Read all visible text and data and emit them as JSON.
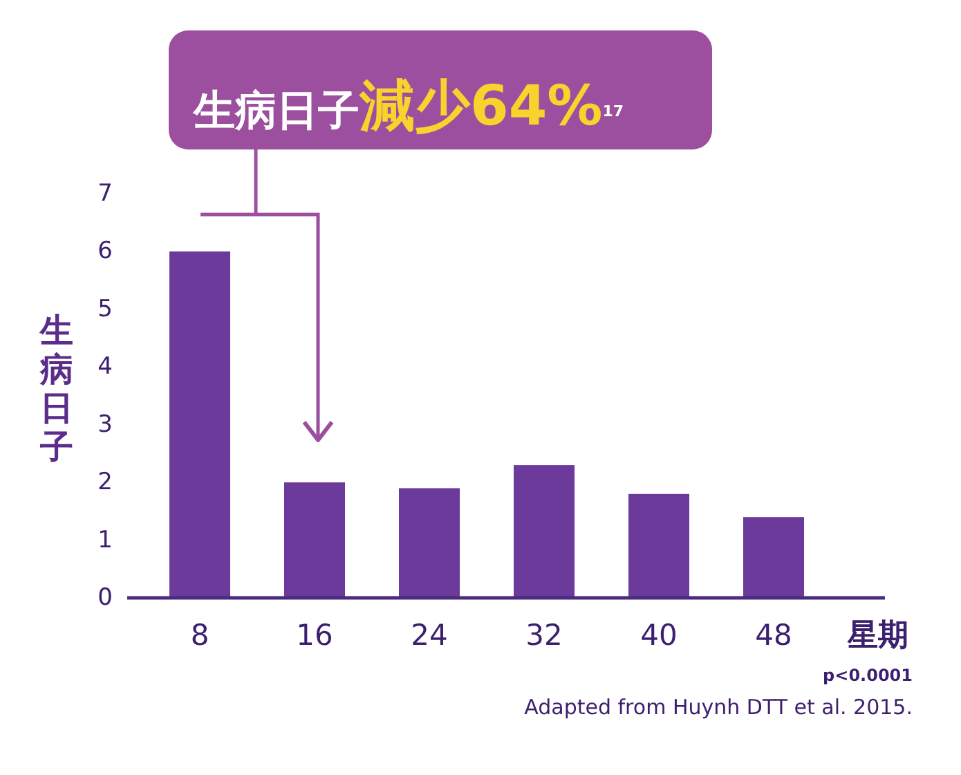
{
  "chart_data": {
    "type": "bar",
    "title": "生病日子**減少64%**$^{17}$",
    "xlabel": "星期",
    "ylabel": "生病日子",
    "categories": [
      "8",
      "16",
      "24",
      "32",
      "40",
      "48"
    ],
    "values": [
      6.0,
      2.0,
      1.9,
      2.3,
      1.8,
      1.4
    ],
    "color": "#6b3a9b",
    "ylim": [
      0,
      7
    ],
    "yticks": [
      0,
      1,
      2,
      3,
      4,
      5,
      6,
      7
    ],
    "grid": false,
    "annotations": [
      "p<0.0001",
      "Adapted from Huynh DTT et al. 2015."
    ]
  }
}
